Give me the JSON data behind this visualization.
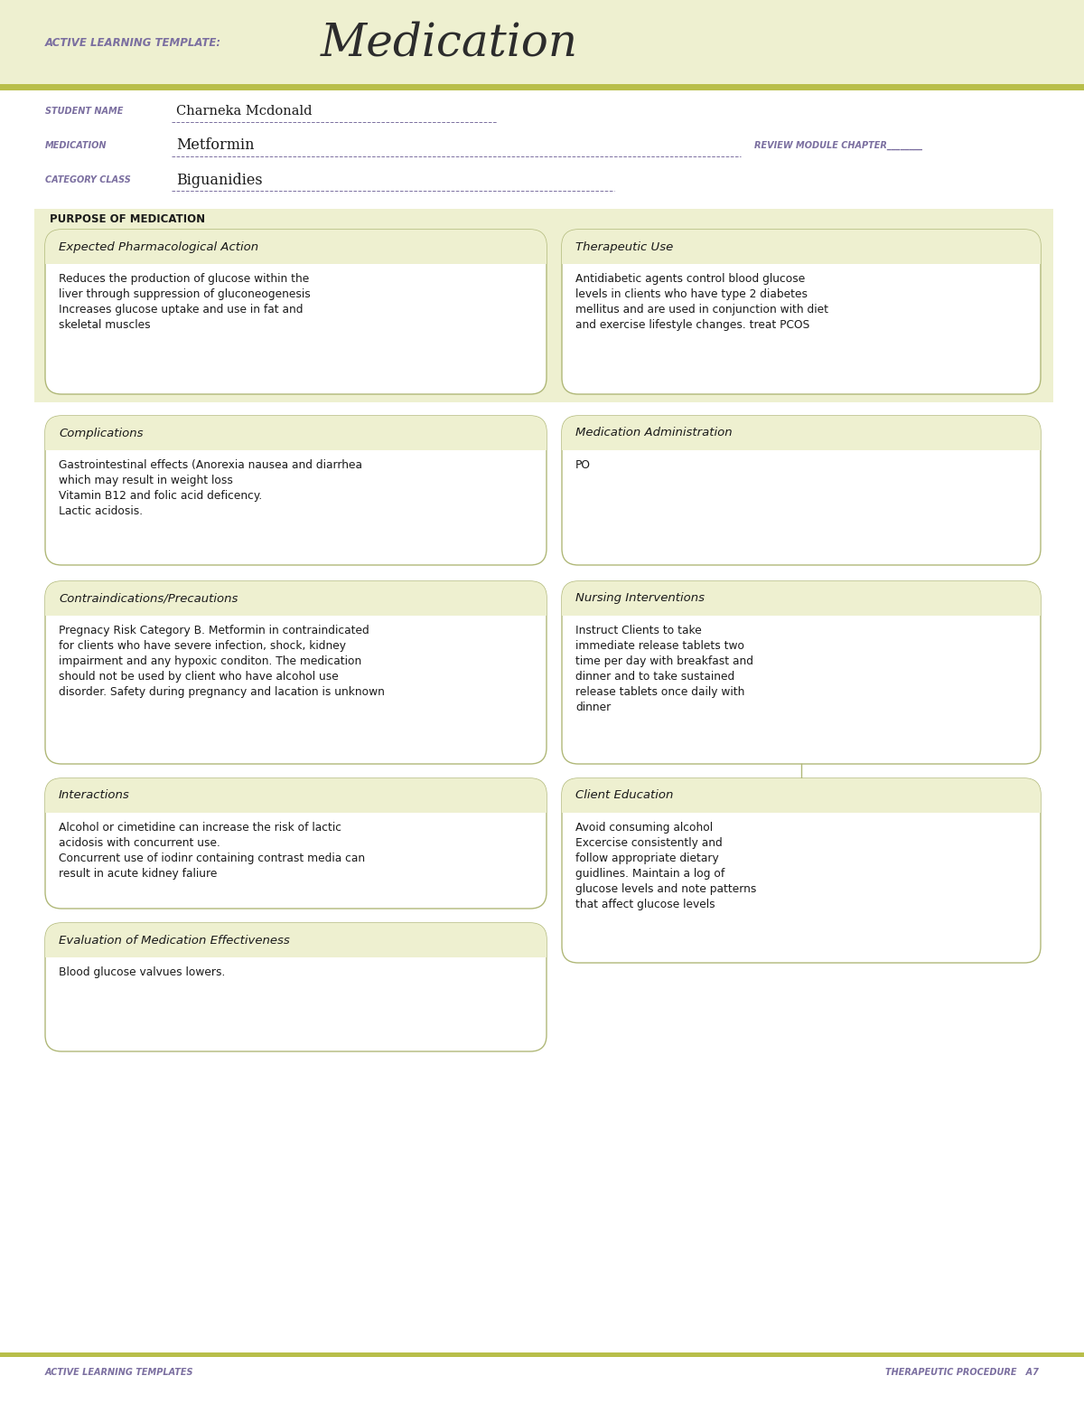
{
  "bg_color": "#eef0d0",
  "white": "#ffffff",
  "olive_green": "#b8be4a",
  "box_bg": "#eef0d0",
  "box_bg_white": "#ffffff",
  "box_border": "#b0b878",
  "text_dark": "#1a1a1a",
  "label_color": "#7b6fa0",
  "title_label": "ACTIVE LEARNING TEMPLATE:",
  "title_main": "Medication",
  "student_name": "Charneka Mcdonald",
  "medication": "Metformin",
  "category_class": "Biguanidies",
  "purpose_label": "PURPOSE OF MEDICATION",
  "section1_title": "Expected Pharmacological Action",
  "section1_text": "Reduces the production of glucose within the\nliver through suppression of gluconeogenesis\nIncreases glucose uptake and use in fat and\nskeletal muscles",
  "section2_title": "Therapeutic Use",
  "section2_text": "Antidiabetic agents control blood glucose\nlevels in clients who have type 2 diabetes\nmellitus and are used in conjunction with diet\nand exercise lifestyle changes. treat PCOS",
  "section3_title": "Complications",
  "section3_text": "Gastrointestinal effects (Anorexia nausea and diarrhea\nwhich may result in weight loss\nVitamin B12 and folic acid deficency.\nLactic acidosis.",
  "section4_title": "Medication Administration",
  "section4_text": "PO",
  "section5_title": "Contraindications/Precautions",
  "section5_text": "Pregnacy Risk Category B. Metformin in contraindicated\nfor clients who have severe infection, shock, kidney\nimpairment and any hypoxic conditon. The medication\nshould not be used by client who have alcohol use\ndisorder. Safety during pregnancy and lacation is unknown",
  "section6_title": "Nursing Interventions",
  "section6_text": "Instruct Clients to take\nimmediate release tablets two\ntime per day with breakfast and\ndinner and to take sustained\nrelease tablets once daily with\ndinner",
  "section7_title": "Interactions",
  "section7_text": "Alcohol or cimetidine can increase the risk of lactic\nacidosis with concurrent use.\nConcurrent use of iodinr containing contrast media can\nresult in acute kidney faliure",
  "section8_title": "Client Education",
  "section8_text": "Avoid consuming alcohol\nExcercise consistently and\nfollow appropriate dietary\nguidlines. Maintain a log of\nglucose levels and note patterns\nthat affect glucose levels",
  "section9_title": "Evaluation of Medication Effectiveness",
  "section9_text": "Blood glucose valvues lowers.",
  "footer_left": "ACTIVE LEARNING TEMPLATES",
  "footer_right": "THERAPEUTIC PROCEDURE   A7"
}
